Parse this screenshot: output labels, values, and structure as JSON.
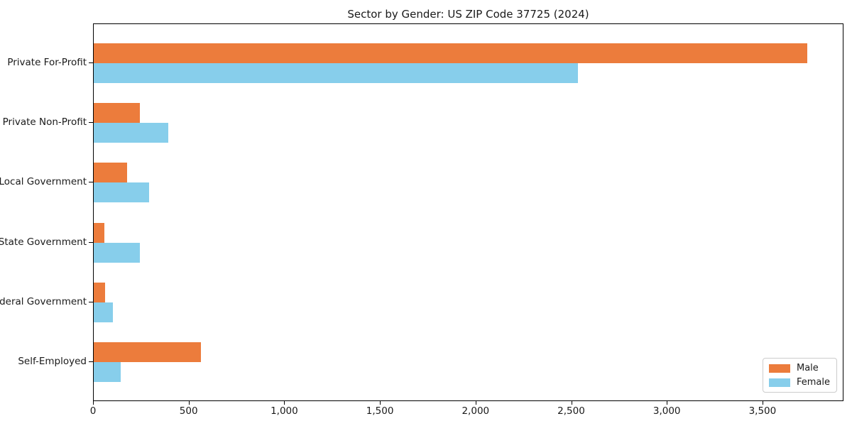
{
  "chart_data": {
    "type": "bar",
    "orientation": "horizontal",
    "title": "Sector by Gender: US ZIP Code 37725 (2024)",
    "categories": [
      "Private For-Profit",
      "Private Non-Profit",
      "Local Government",
      "State Government",
      "Federal Government",
      "Self-Employed"
    ],
    "series": [
      {
        "name": "Male",
        "color": "#ec7c3c",
        "values": [
          3730,
          240,
          175,
          55,
          60,
          560
        ]
      },
      {
        "name": "Female",
        "color": "#87ceeb",
        "values": [
          2530,
          390,
          290,
          240,
          100,
          140
        ]
      }
    ],
    "xlabel": "",
    "ylabel": "",
    "xlim": [
      0,
      3920
    ],
    "x_ticks": [
      0,
      500,
      1000,
      1500,
      2000,
      2500,
      3000,
      3500
    ],
    "x_tick_labels": [
      "0",
      "500",
      "1,000",
      "1,500",
      "2,000",
      "2,500",
      "3,000",
      "3,500"
    ],
    "grid": false,
    "background": "#ffffff",
    "spine_color": "#000000",
    "legend": {
      "position": "lower right",
      "entries": [
        "Male",
        "Female"
      ]
    }
  }
}
